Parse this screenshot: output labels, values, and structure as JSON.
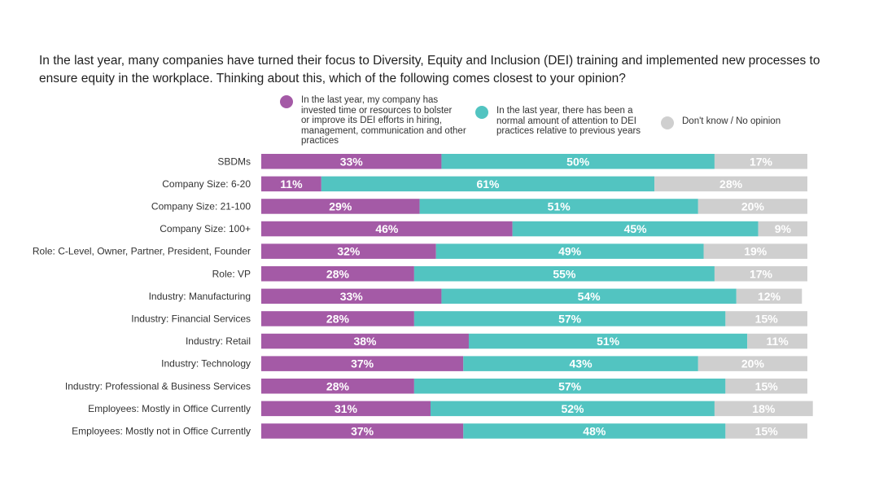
{
  "chart_data": {
    "type": "bar",
    "orientation": "horizontal",
    "stacked": true,
    "normalized_percent": true,
    "title": "In the last year, many companies have turned their focus to Diversity, Equity and Inclusion (DEI) training and implemented new processes to ensure equity in the workplace. Thinking about this, which of the following comes closest to your opinion?",
    "xlim": [
      0,
      100
    ],
    "categories": [
      "SBDMs",
      "Company Size: 6-20",
      "Company Size: 21-100",
      "Company Size: 100+",
      "Role: C-Level, Owner, Partner, President, Founder",
      "Role: VP",
      "Industry: Manufacturing",
      "Industry: Financial Services",
      "Industry: Retail",
      "Industry: Technology",
      "Industry: Professional & Business Services",
      "Employees: Mostly in Office Currently",
      "Employees: Mostly not in Office Currently"
    ],
    "series": [
      {
        "name": "In the last year, my company has invested time or resources to bolster or improve its DEI efforts in hiring, management, communication and other practices",
        "legend_lines": [
          "In the last year, my company has",
          "invested time or resources to bolster",
          "or improve its DEI efforts in hiring,",
          "management, communication and other",
          "practices"
        ],
        "color": "#a45aa6",
        "values": [
          33,
          11,
          29,
          46,
          32,
          28,
          33,
          28,
          38,
          37,
          28,
          31,
          37
        ]
      },
      {
        "name": "In the last year, there has been a normal amount of attention to DEI practices relative to previous years",
        "legend_lines": [
          "In the last year, there has been a",
          "normal amount of attention to DEI",
          "practices relative to previous years"
        ],
        "color": "#52c4c1",
        "values": [
          50,
          61,
          51,
          45,
          49,
          55,
          54,
          57,
          51,
          43,
          57,
          52,
          48
        ]
      },
      {
        "name": "Don't know / No opinion",
        "legend_lines": [
          "Don't know / No opinion"
        ],
        "color": "#cfcfcf",
        "values": [
          17,
          28,
          20,
          9,
          19,
          17,
          12,
          15,
          11,
          20,
          15,
          18,
          15
        ]
      }
    ]
  }
}
